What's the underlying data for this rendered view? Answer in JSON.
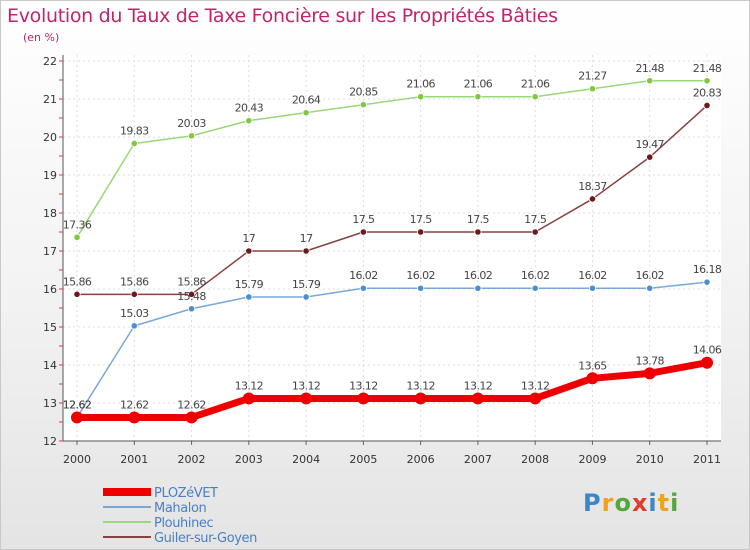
{
  "header": {
    "title": "Evolution du Taux de Taxe Foncière sur les Propriétés Bâties",
    "subtitle": "(en %)"
  },
  "logo": {
    "letters": [
      "P",
      "r",
      "o",
      "x",
      "i",
      "t",
      "i"
    ],
    "colors": [
      "#3a86c8",
      "#f0a21e",
      "#52a83c",
      "#e23b2e",
      "#3a86c8",
      "#f0a21e",
      "#52a83c"
    ]
  },
  "chart_data": {
    "type": "line",
    "title": "Evolution du Taux de Taxe Foncière sur les Propriétés Bâties",
    "ylabel": "(en %)",
    "xlabel": "",
    "x": [
      "2000",
      "2001",
      "2002",
      "2003",
      "2004",
      "2005",
      "2006",
      "2007",
      "2008",
      "2009",
      "2010",
      "2011"
    ],
    "ylim": [
      12,
      22
    ],
    "yticks": [
      12,
      13,
      14,
      15,
      16,
      17,
      18,
      19,
      20,
      21,
      22
    ],
    "grid": true,
    "legend_position": "bottom-left",
    "series": [
      {
        "name": "Plouhinec",
        "color": "#98d878",
        "marker": "#80c840",
        "width": 1.5,
        "values": [
          17.36,
          19.83,
          20.03,
          20.43,
          20.64,
          20.85,
          21.06,
          21.06,
          21.06,
          21.27,
          21.48,
          21.48
        ],
        "labels": [
          "17.36",
          "19.83",
          "20.03",
          "20.43",
          "20.64",
          "20.85",
          "21.06",
          "21.06",
          "21.06",
          "21.27",
          "21.48",
          "21.48"
        ]
      },
      {
        "name": "Guiler-sur-Goyen",
        "color": "#8a4040",
        "marker": "#6a1a1a",
        "width": 1.5,
        "values": [
          15.86,
          15.86,
          15.86,
          17,
          17,
          17.5,
          17.5,
          17.5,
          17.5,
          18.37,
          19.47,
          20.83
        ],
        "labels": [
          "15.86",
          "15.86",
          "15.86",
          "17",
          "17",
          "17.5",
          "17.5",
          "17.5",
          "17.5",
          "18.37",
          "19.47",
          "20.83"
        ]
      },
      {
        "name": "Mahalon",
        "color": "#78a8d8",
        "marker": "#4a90d0",
        "width": 1.5,
        "values": [
          12.62,
          15.03,
          15.48,
          15.79,
          15.79,
          16.02,
          16.02,
          16.02,
          16.02,
          16.02,
          16.02,
          16.18
        ],
        "labels": [
          "12.62",
          "15.03",
          "15.48",
          "15.79",
          "15.79",
          "16.02",
          "16.02",
          "16.02",
          "16.02",
          "16.02",
          "16.02",
          "16.18"
        ]
      },
      {
        "name": "PLOZéVET",
        "color": "#ee0000",
        "marker": "#ee0000",
        "width": 7,
        "values": [
          12.62,
          12.62,
          12.62,
          13.12,
          13.12,
          13.12,
          13.12,
          13.12,
          13.12,
          13.65,
          13.78,
          14.06
        ],
        "labels": [
          "12.62",
          "12.62",
          "12.62",
          "13.12",
          "13.12",
          "13.12",
          "13.12",
          "13.12",
          "13.12",
          "13.65",
          "13.78",
          "14.06"
        ]
      }
    ],
    "legend": [
      "PLOZéVET",
      "Mahalon",
      "Plouhinec",
      "Guiler-sur-Goyen"
    ]
  }
}
